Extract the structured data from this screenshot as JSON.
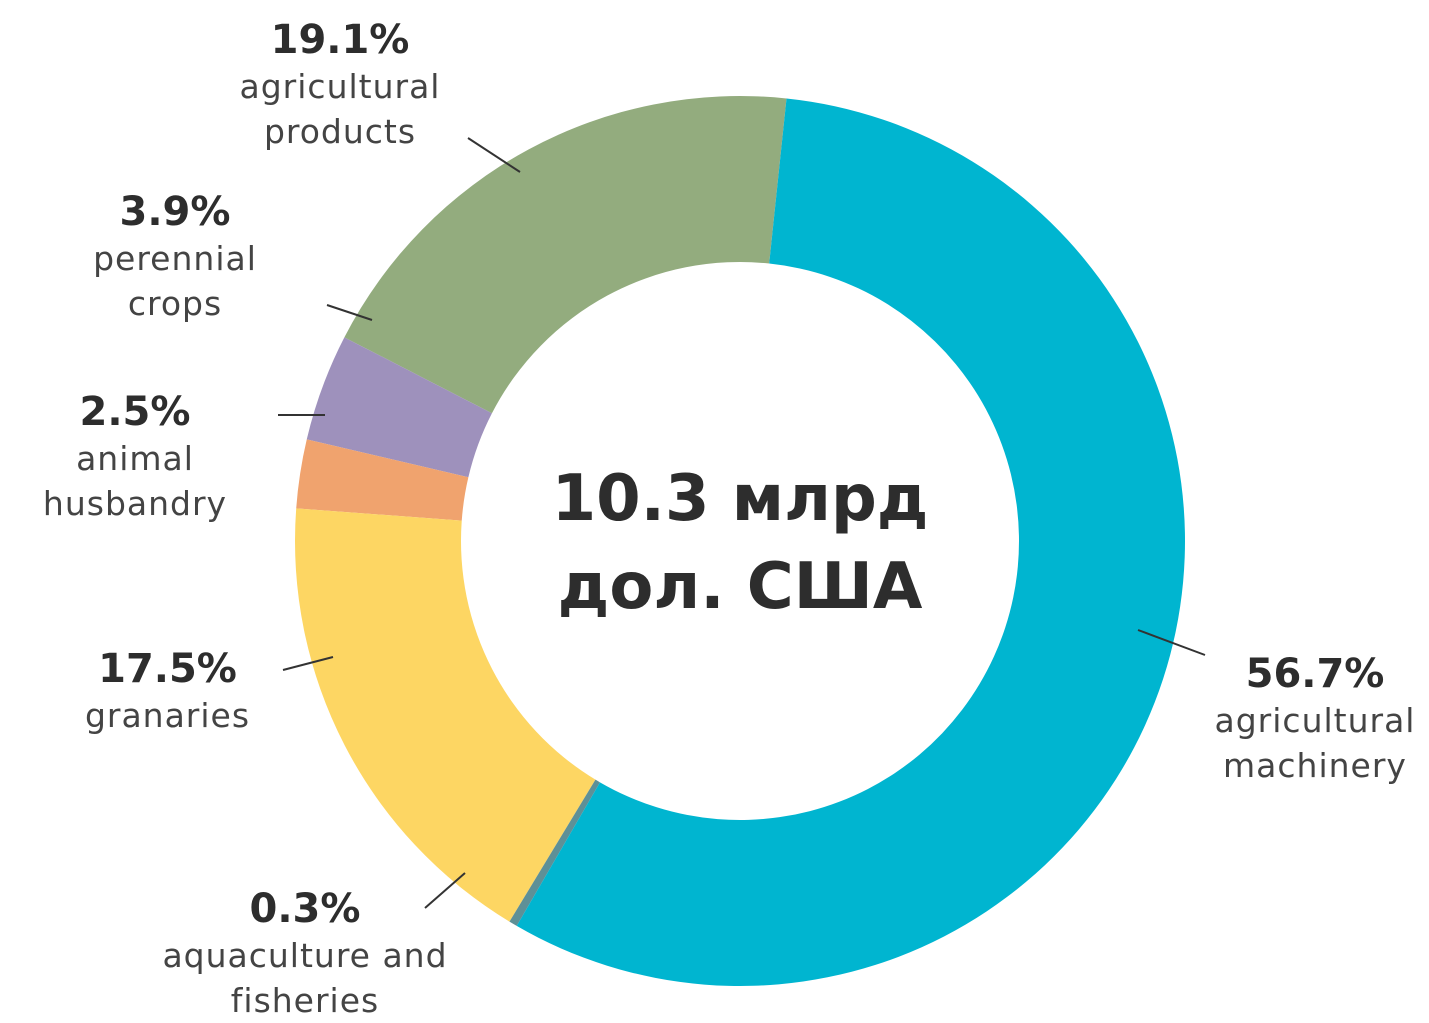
{
  "chart_data": {
    "type": "donut",
    "center_label": "10.3 млрд дол. США",
    "categories": [
      "agricultural machinery",
      "aquaculture and fisheries",
      "granaries",
      "animal husbandry",
      "perennial crops",
      "agricultural products"
    ],
    "values": [
      56.7,
      0.3,
      17.5,
      2.5,
      3.9,
      19.1
    ],
    "value_labels": [
      "56.7%",
      "0.3%",
      "17.5%",
      "2.5%",
      "3.9%",
      "19.1%"
    ],
    "colors": [
      "#00b5d0",
      "#5e9097",
      "#fdd663",
      "#f0a36e",
      "#9e91bc",
      "#93ac7e"
    ]
  }
}
